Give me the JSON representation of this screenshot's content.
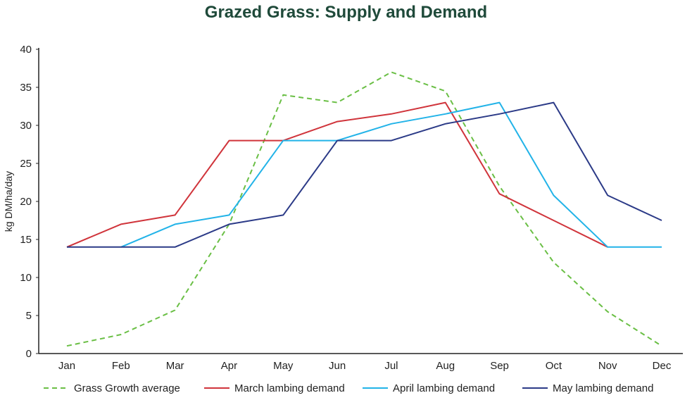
{
  "chart_data": {
    "type": "line",
    "title": "Grazed Grass: Supply and Demand",
    "xlabel": "",
    "ylabel": "kg DM/ha/day",
    "ylim": [
      0,
      40
    ],
    "yticks": [
      0,
      5,
      10,
      15,
      20,
      25,
      30,
      35,
      40
    ],
    "categories": [
      "Jan",
      "Feb",
      "Mar",
      "Apr",
      "May",
      "Jun",
      "Jul",
      "Aug",
      "Sep",
      "Oct",
      "Nov",
      "Dec"
    ],
    "grid": false,
    "legend_position": "bottom",
    "series": [
      {
        "name": "Grass Growth average",
        "color": "#6abf45",
        "dashed": true,
        "values": [
          1,
          2.5,
          5.7,
          17,
          34,
          33,
          37,
          34.5,
          22,
          12,
          5.5,
          1
        ]
      },
      {
        "name": "March lambing demand",
        "color": "#d0343b",
        "dashed": false,
        "values": [
          14,
          17,
          18.2,
          28,
          28,
          30.5,
          31.5,
          33,
          21,
          17.5,
          14,
          null
        ]
      },
      {
        "name": "April lambing demand",
        "color": "#22b3e8",
        "dashed": false,
        "values": [
          null,
          14,
          17,
          18.2,
          28,
          28,
          30.2,
          31.5,
          33,
          20.8,
          14,
          14
        ]
      },
      {
        "name": "May lambing demand",
        "color": "#2b3a87",
        "dashed": false,
        "values": [
          14,
          14,
          14,
          17,
          18.2,
          28,
          28,
          30.2,
          31.5,
          33,
          20.8,
          17.5
        ]
      }
    ]
  }
}
